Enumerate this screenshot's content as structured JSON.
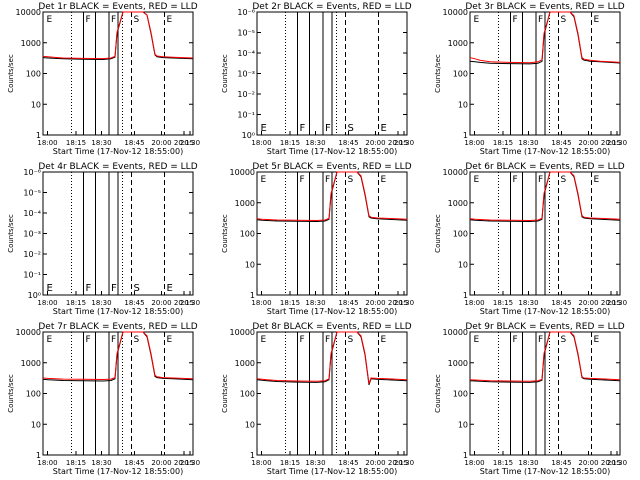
{
  "chart_data": [
    {
      "type": "line",
      "title": "Det 1r BLACK = Events, RED = LLD",
      "xlabel": "Start Time (17-Nov-12 18:55:00)",
      "ylabel": "Counts/sec",
      "yscale": "log",
      "ylim": [
        1,
        10000
      ],
      "xlim": [
        "18:00",
        "20:30"
      ],
      "x_ticks": [
        "18:00",
        "18:15",
        "18:30",
        "18:45",
        "20:00",
        "20:15",
        "20:30"
      ],
      "y_ticks": [
        "1",
        "10",
        "100",
        "1000",
        "10000"
      ],
      "markers": [
        "E",
        "F",
        "F",
        "S",
        "E"
      ],
      "has_data": true,
      "series": [
        {
          "color": "#000000",
          "x_min": [
            0,
            5,
            10,
            20,
            40,
            60,
            68,
            72,
            74,
            80,
            90,
            100,
            104,
            108,
            112,
            114,
            120,
            130,
            140,
            150
          ],
          "y": [
            330,
            320,
            315,
            300,
            290,
            285,
            300,
            340,
            2000,
            10000,
            10000,
            10000,
            8000,
            2000,
            400,
            350,
            330,
            320,
            310,
            300
          ]
        },
        {
          "color": "#ff0000",
          "x_min": [
            0,
            5,
            10,
            20,
            40,
            60,
            68,
            72,
            74,
            80,
            90,
            100,
            104,
            108,
            112,
            114,
            120,
            130,
            140,
            150
          ],
          "y": [
            360,
            350,
            340,
            320,
            310,
            305,
            320,
            360,
            2200,
            10000,
            10000,
            10000,
            8000,
            2200,
            420,
            370,
            350,
            340,
            330,
            320
          ]
        }
      ]
    },
    {
      "type": "line",
      "title": "Det 2r BLACK = Events, RED = LLD",
      "xlabel": "Start Time (17-Nov-12 18:55:00)",
      "ylabel": "Counts/sec",
      "yscale": "log",
      "ylim": [
        1,
        1e-06
      ],
      "xlim": [
        "18:00",
        "20:30"
      ],
      "x_ticks": [
        "18:00",
        "18:15",
        "18:30",
        "18:45",
        "20:00",
        "20:15",
        "20:30"
      ],
      "y_ticks": [
        "10⁰",
        "10⁻¹",
        "10⁻²",
        "10⁻³",
        "10⁻⁴",
        "10⁻⁵",
        "10⁻⁶"
      ],
      "markers": [
        "E",
        "F",
        "F",
        "S",
        "E"
      ],
      "has_data": false,
      "series": []
    },
    {
      "type": "line",
      "title": "Det 3r BLACK = Events, RED = LLD",
      "xlabel": "Start Time (17-Nov-12 18:55:00)",
      "ylabel": "Counts/sec",
      "yscale": "log",
      "ylim": [
        1,
        10000
      ],
      "xlim": [
        "18:00",
        "20:30"
      ],
      "x_ticks": [
        "18:00",
        "18:15",
        "18:30",
        "18:45",
        "20:00",
        "20:15",
        "20:30"
      ],
      "y_ticks": [
        "1",
        "10",
        "100",
        "1000",
        "10000"
      ],
      "markers": [
        "E",
        "F",
        "F",
        "S",
        "E"
      ],
      "has_data": true,
      "series": [
        {
          "color": "#000000",
          "x_min": [
            0,
            5,
            10,
            20,
            40,
            60,
            68,
            72,
            74,
            80,
            90,
            100,
            104,
            108,
            112,
            114,
            120,
            130,
            140,
            150
          ],
          "y": [
            250,
            240,
            230,
            215,
            210,
            205,
            215,
            250,
            1800,
            10000,
            10000,
            10000,
            7000,
            1800,
            300,
            270,
            250,
            240,
            230,
            220
          ]
        },
        {
          "color": "#ff0000",
          "x_min": [
            0,
            5,
            10,
            20,
            40,
            60,
            68,
            72,
            74,
            80,
            90,
            100,
            104,
            108,
            112,
            114,
            120,
            130,
            140,
            150
          ],
          "y": [
            330,
            300,
            270,
            240,
            230,
            225,
            240,
            280,
            2000,
            10000,
            10000,
            10000,
            7500,
            2000,
            330,
            290,
            270,
            250,
            240,
            230
          ]
        }
      ]
    },
    {
      "type": "line",
      "title": "Det 4r BLACK = Events, RED = LLD",
      "xlabel": "Start Time (17-Nov-12 18:55:00)",
      "ylabel": "Counts/sec",
      "yscale": "log",
      "ylim": [
        1,
        1e-06
      ],
      "xlim": [
        "18:00",
        "20:30"
      ],
      "x_ticks": [
        "18:00",
        "18:15",
        "18:30",
        "18:45",
        "20:00",
        "20:15",
        "20:30"
      ],
      "y_ticks": [
        "10⁰",
        "10⁻¹",
        "10⁻²",
        "10⁻³",
        "10⁻⁴",
        "10⁻⁵",
        "10⁻⁶"
      ],
      "markers": [
        "E",
        "F",
        "F",
        "S",
        "E"
      ],
      "has_data": false,
      "series": []
    },
    {
      "type": "line",
      "title": "Det 5r BLACK = Events, RED = LLD",
      "xlabel": "Start Time (17-Nov-12 18:55:00)",
      "ylabel": "Counts/sec",
      "yscale": "log",
      "ylim": [
        1,
        10000
      ],
      "xlim": [
        "18:00",
        "20:30"
      ],
      "x_ticks": [
        "18:00",
        "18:15",
        "18:30",
        "18:45",
        "20:00",
        "20:15",
        "20:30"
      ],
      "y_ticks": [
        "1",
        "10",
        "100",
        "1000",
        "10000"
      ],
      "markers": [
        "E",
        "F",
        "F",
        "S",
        "E"
      ],
      "has_data": true,
      "series": [
        {
          "color": "#000000",
          "x_min": [
            0,
            5,
            10,
            20,
            40,
            60,
            68,
            72,
            74,
            80,
            90,
            100,
            104,
            108,
            112,
            114,
            120,
            130,
            140,
            150
          ],
          "y": [
            280,
            270,
            265,
            255,
            250,
            245,
            255,
            290,
            1800,
            10000,
            10000,
            10000,
            7000,
            1800,
            350,
            320,
            300,
            290,
            280,
            270
          ]
        },
        {
          "color": "#ff0000",
          "x_min": [
            0,
            5,
            10,
            20,
            40,
            60,
            68,
            72,
            74,
            80,
            90,
            100,
            104,
            108,
            112,
            114,
            120,
            130,
            140,
            150
          ],
          "y": [
            300,
            290,
            285,
            275,
            270,
            265,
            275,
            310,
            2000,
            10000,
            10000,
            10000,
            7500,
            2000,
            380,
            340,
            320,
            310,
            300,
            290
          ]
        }
      ]
    },
    {
      "type": "line",
      "title": "Det 6r BLACK = Events, RED = LLD",
      "xlabel": "Start Time (17-Nov-12 18:55:00)",
      "ylabel": "Counts/sec",
      "yscale": "log",
      "ylim": [
        1,
        10000
      ],
      "xlim": [
        "18:00",
        "20:30"
      ],
      "x_ticks": [
        "18:00",
        "18:15",
        "18:30",
        "18:45",
        "20:00",
        "20:15",
        "20:30"
      ],
      "y_ticks": [
        "1",
        "10",
        "100",
        "1000",
        "10000"
      ],
      "markers": [
        "E",
        "F",
        "F",
        "S",
        "E"
      ],
      "has_data": true,
      "series": [
        {
          "color": "#000000",
          "x_min": [
            0,
            5,
            10,
            20,
            40,
            60,
            68,
            72,
            74,
            80,
            90,
            100,
            104,
            108,
            112,
            114,
            120,
            130,
            140,
            150
          ],
          "y": [
            280,
            270,
            265,
            255,
            250,
            245,
            255,
            290,
            1800,
            10000,
            10000,
            10000,
            7000,
            1800,
            350,
            320,
            300,
            290,
            280,
            270
          ]
        },
        {
          "color": "#ff0000",
          "x_min": [
            0,
            5,
            10,
            20,
            40,
            60,
            68,
            72,
            74,
            80,
            90,
            100,
            104,
            108,
            112,
            114,
            120,
            130,
            140,
            150
          ],
          "y": [
            300,
            290,
            285,
            275,
            270,
            265,
            275,
            310,
            2000,
            10000,
            10000,
            10000,
            7500,
            2000,
            380,
            340,
            320,
            310,
            300,
            290
          ]
        }
      ]
    },
    {
      "type": "line",
      "title": "Det 7r BLACK = Events, RED = LLD",
      "xlabel": "Start Time (17-Nov-12 18:55:00)",
      "ylabel": "Counts/sec",
      "yscale": "log",
      "ylim": [
        1,
        10000
      ],
      "xlim": [
        "18:00",
        "20:30"
      ],
      "x_ticks": [
        "18:00",
        "18:15",
        "18:30",
        "18:45",
        "20:00",
        "20:15",
        "20:30"
      ],
      "y_ticks": [
        "1",
        "10",
        "100",
        "1000",
        "10000"
      ],
      "markers": [
        "E",
        "F",
        "F",
        "S",
        "E"
      ],
      "has_data": true,
      "series": [
        {
          "color": "#000000",
          "x_min": [
            0,
            5,
            10,
            20,
            40,
            60,
            68,
            72,
            74,
            80,
            90,
            100,
            104,
            108,
            112,
            114,
            120,
            130,
            140,
            150
          ],
          "y": [
            290,
            280,
            275,
            265,
            260,
            255,
            265,
            300,
            1800,
            10000,
            10000,
            10000,
            7000,
            1800,
            360,
            330,
            310,
            300,
            290,
            280
          ]
        },
        {
          "color": "#ff0000",
          "x_min": [
            0,
            5,
            10,
            20,
            40,
            60,
            68,
            72,
            74,
            80,
            90,
            100,
            104,
            108,
            112,
            114,
            120,
            130,
            140,
            150
          ],
          "y": [
            320,
            310,
            305,
            295,
            290,
            285,
            295,
            330,
            2000,
            10000,
            10000,
            10000,
            7500,
            2000,
            390,
            350,
            330,
            320,
            310,
            300
          ]
        }
      ]
    },
    {
      "type": "line",
      "title": "Det 8r BLACK = Events, RED = LLD",
      "xlabel": "Start Time (17-Nov-12 18:55:00)",
      "ylabel": "Counts/sec",
      "yscale": "log",
      "ylim": [
        1,
        10000
      ],
      "xlim": [
        "18:00",
        "20:30"
      ],
      "x_ticks": [
        "18:00",
        "18:15",
        "18:30",
        "18:45",
        "20:00",
        "20:15",
        "20:30"
      ],
      "y_ticks": [
        "1",
        "10",
        "100",
        "1000",
        "10000"
      ],
      "markers": [
        "E",
        "F",
        "F",
        "S",
        "E"
      ],
      "has_data": true,
      "series": [
        {
          "color": "#000000",
          "x_min": [
            0,
            5,
            10,
            20,
            40,
            60,
            68,
            72,
            74,
            80,
            90,
            100,
            104,
            108,
            112,
            114,
            120,
            130,
            140,
            150
          ],
          "y": [
            280,
            270,
            260,
            245,
            235,
            230,
            240,
            280,
            1800,
            10000,
            10000,
            10000,
            7000,
            1800,
            190,
            300,
            290,
            280,
            270,
            260
          ]
        },
        {
          "color": "#ff0000",
          "x_min": [
            0,
            5,
            10,
            20,
            40,
            60,
            68,
            72,
            74,
            80,
            90,
            100,
            104,
            108,
            112,
            114,
            120,
            130,
            140,
            150
          ],
          "y": [
            300,
            290,
            280,
            265,
            255,
            250,
            260,
            300,
            2000,
            10000,
            10000,
            10000,
            7500,
            2000,
            210,
            320,
            310,
            300,
            290,
            280
          ]
        }
      ]
    },
    {
      "type": "line",
      "title": "Det 9r BLACK = Events, RED = LLD",
      "xlabel": "Start Time (17-Nov-12 18:55:00)",
      "ylabel": "Counts/sec",
      "yscale": "log",
      "ylim": [
        1,
        10000
      ],
      "xlim": [
        "18:00",
        "20:30"
      ],
      "x_ticks": [
        "18:00",
        "18:15",
        "18:30",
        "18:45",
        "20:00",
        "20:15",
        "20:30"
      ],
      "y_ticks": [
        "1",
        "10",
        "100",
        "1000",
        "10000"
      ],
      "markers": [
        "E",
        "F",
        "F",
        "S",
        "E"
      ],
      "has_data": true,
      "series": [
        {
          "color": "#000000",
          "x_min": [
            0,
            5,
            10,
            20,
            40,
            60,
            68,
            72,
            74,
            80,
            90,
            100,
            104,
            108,
            112,
            114,
            120,
            130,
            140,
            150
          ],
          "y": [
            260,
            255,
            250,
            240,
            235,
            230,
            240,
            270,
            1800,
            10000,
            10000,
            10000,
            7000,
            1800,
            330,
            300,
            290,
            280,
            270,
            260
          ]
        },
        {
          "color": "#ff0000",
          "x_min": [
            0,
            5,
            10,
            20,
            40,
            60,
            68,
            72,
            74,
            80,
            90,
            100,
            104,
            108,
            112,
            114,
            120,
            130,
            140,
            150
          ],
          "y": [
            280,
            275,
            270,
            260,
            255,
            250,
            260,
            290,
            2000,
            10000,
            10000,
            10000,
            7500,
            2000,
            350,
            320,
            310,
            300,
            290,
            280
          ]
        }
      ]
    }
  ]
}
